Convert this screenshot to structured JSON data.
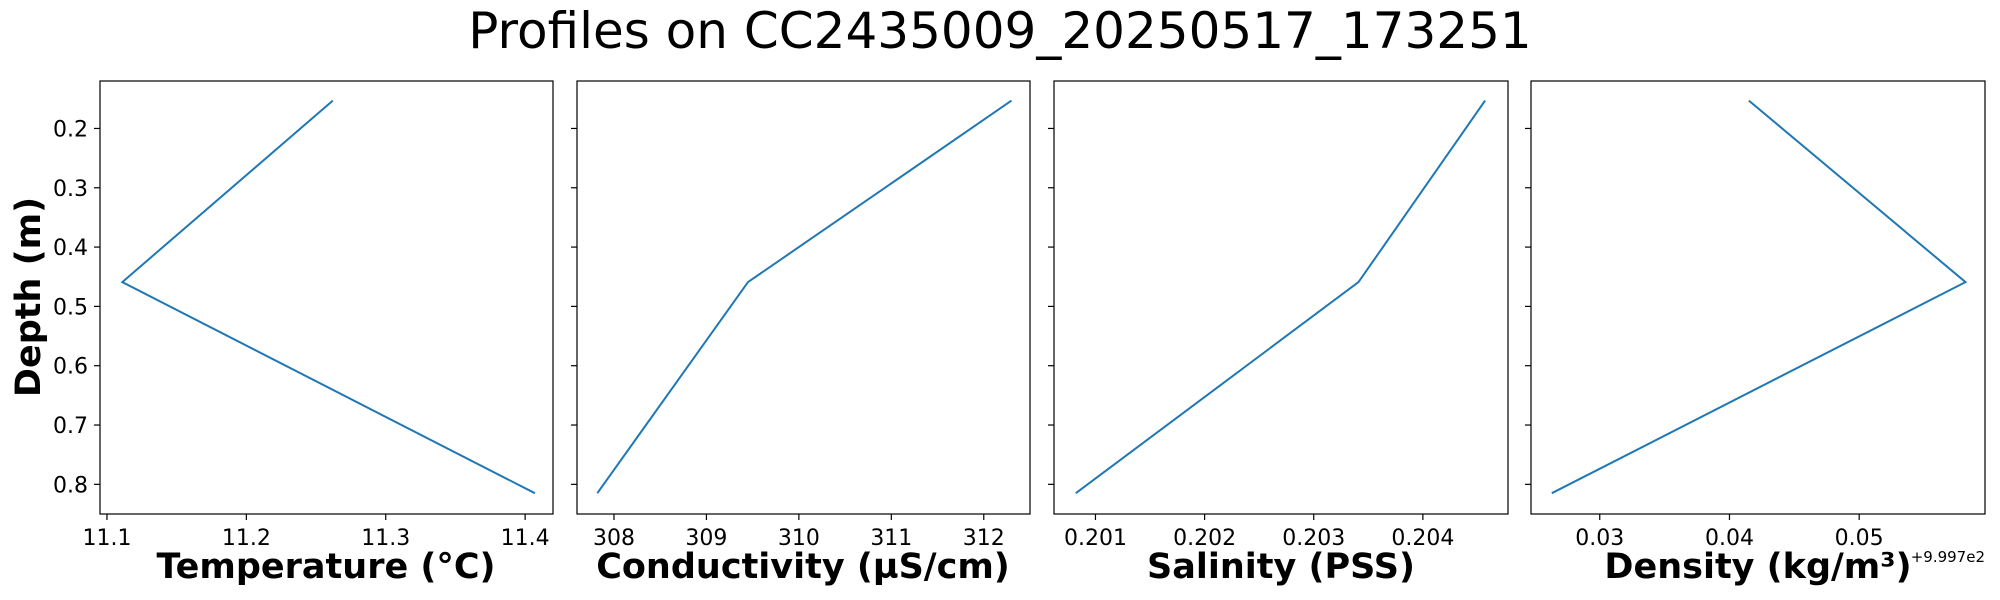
{
  "title": "Profiles on CC2435009_20250517_173251",
  "chart_data": [
    {
      "type": "line",
      "xlabel": "Temperature (°C)",
      "ylabel": "Depth (m)",
      "x_ticks": [
        "11.1",
        "11.2",
        "11.3",
        "11.4"
      ],
      "x_tick_values": [
        11.1,
        11.2,
        11.3,
        11.4
      ],
      "xlim": [
        11.095,
        11.42
      ],
      "y_ticks": [
        "0.2",
        "0.3",
        "0.4",
        "0.5",
        "0.6",
        "0.7",
        "0.8"
      ],
      "y_tick_values": [
        0.2,
        0.3,
        0.4,
        0.5,
        0.6,
        0.7,
        0.8
      ],
      "ylim": [
        0.12,
        0.85
      ],
      "y_inverted": true,
      "series": [
        {
          "x": [
            11.262,
            11.111,
            11.407
          ],
          "y": [
            0.153,
            0.459,
            0.815
          ]
        }
      ]
    },
    {
      "type": "line",
      "xlabel": "Conductivity (µS/cm)",
      "x_ticks": [
        "308",
        "309",
        "310",
        "311",
        "312"
      ],
      "x_tick_values": [
        308,
        309,
        310,
        311,
        312
      ],
      "xlim": [
        307.6,
        312.5
      ],
      "y_tick_values": [
        0.2,
        0.3,
        0.4,
        0.5,
        0.6,
        0.7,
        0.8
      ],
      "ylim": [
        0.12,
        0.85
      ],
      "y_inverted": true,
      "series": [
        {
          "x": [
            312.3,
            309.45,
            307.82
          ],
          "y": [
            0.153,
            0.459,
            0.815
          ]
        }
      ]
    },
    {
      "type": "line",
      "xlabel": "Salinity (PSS)",
      "x_ticks": [
        "0.201",
        "0.202",
        "0.203",
        "0.204"
      ],
      "x_tick_values": [
        0.201,
        0.202,
        0.203,
        0.204
      ],
      "xlim": [
        0.20062,
        0.20478
      ],
      "y_tick_values": [
        0.2,
        0.3,
        0.4,
        0.5,
        0.6,
        0.7,
        0.8
      ],
      "ylim": [
        0.12,
        0.85
      ],
      "y_inverted": true,
      "series": [
        {
          "x": [
            0.20457,
            0.20341,
            0.20082
          ],
          "y": [
            0.153,
            0.459,
            0.815
          ]
        }
      ]
    },
    {
      "type": "line",
      "xlabel": "Density (kg/m³)",
      "x_offset_label": "+9.997e2",
      "x_ticks": [
        "0.03",
        "0.04",
        "0.05"
      ],
      "x_tick_values": [
        0.03,
        0.04,
        0.05
      ],
      "xlim": [
        0.0247,
        0.0597
      ],
      "y_tick_values": [
        0.2,
        0.3,
        0.4,
        0.5,
        0.6,
        0.7,
        0.8
      ],
      "ylim": [
        0.12,
        0.85
      ],
      "y_inverted": true,
      "series": [
        {
          "x": [
            0.0415,
            0.0582,
            0.0263
          ],
          "y": [
            0.153,
            0.459,
            0.815
          ]
        }
      ]
    }
  ],
  "colors": {
    "line": "#1f77b4",
    "axes": "#000000",
    "background": "#ffffff"
  }
}
